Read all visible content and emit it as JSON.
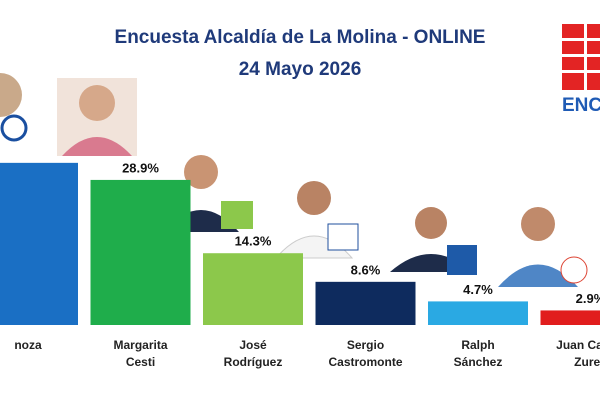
{
  "chart_data": {
    "type": "bar",
    "title": "Encuesta Alcaldía de La Molina - ONLINE",
    "subtitle": "24 Mayo 2026",
    "logo_text": "ENC",
    "categories": [
      [
        "noza"
      ],
      [
        "Margarita",
        "Cesti"
      ],
      [
        "José",
        "Rodríguez"
      ],
      [
        "Sergio",
        "Castromonte"
      ],
      [
        "Ralph",
        "Sánchez"
      ],
      [
        "Juan Carlos",
        "Zurek"
      ]
    ],
    "values": [
      32.3,
      28.9,
      14.3,
      8.6,
      4.7,
      2.9
    ],
    "value_labels": [
      null,
      "28.9%",
      "14.3%",
      "8.6%",
      "4.7%",
      "2.9%"
    ],
    "colors": [
      "#1a6fc4",
      "#1fad4b",
      "#8cc84b",
      "#0e2b5e",
      "#2aa9e3",
      "#e11d1d"
    ],
    "ylim": [
      0,
      35
    ]
  }
}
